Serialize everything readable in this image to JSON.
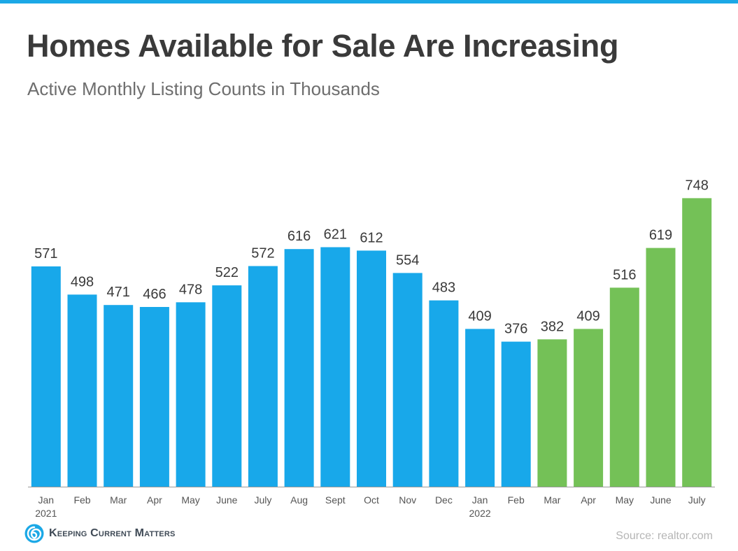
{
  "header": {
    "title": "Homes Available for Sale Are Increasing",
    "subtitle": "Active Monthly Listing Counts in Thousands"
  },
  "chart_data": {
    "type": "bar",
    "title": "Homes Available for Sale Are Increasing",
    "subtitle": "Active Monthly Listing Counts in Thousands",
    "xlabel": "",
    "ylabel": "",
    "ylim": [
      0,
      780
    ],
    "grid": false,
    "categories": [
      "Jan",
      "Feb",
      "Mar",
      "Apr",
      "May",
      "June",
      "July",
      "Aug",
      "Sept",
      "Oct",
      "Nov",
      "Dec",
      "Jan",
      "Feb",
      "Mar",
      "Apr",
      "May",
      "June",
      "July"
    ],
    "year_labels": [
      "2021",
      "",
      "",
      "",
      "",
      "",
      "",
      "",
      "",
      "",
      "",
      "",
      "2022",
      "",
      "",
      "",
      "",
      "",
      ""
    ],
    "values": [
      571,
      498,
      471,
      466,
      478,
      522,
      572,
      616,
      621,
      612,
      554,
      483,
      409,
      376,
      382,
      409,
      516,
      619,
      748
    ],
    "bar_colors": [
      "#18a8ea",
      "#18a8ea",
      "#18a8ea",
      "#18a8ea",
      "#18a8ea",
      "#18a8ea",
      "#18a8ea",
      "#18a8ea",
      "#18a8ea",
      "#18a8ea",
      "#18a8ea",
      "#18a8ea",
      "#18a8ea",
      "#18a8ea",
      "#74c157",
      "#74c157",
      "#74c157",
      "#74c157",
      "#74c157"
    ]
  },
  "footer": {
    "logo_text": "Keeping Current Matters",
    "source": "Source: realtor.com"
  },
  "colors": {
    "accent_blue": "#18a8ea",
    "accent_green": "#74c157",
    "title_color": "#3a3a3a",
    "top_rule": "#1ba8e6"
  }
}
